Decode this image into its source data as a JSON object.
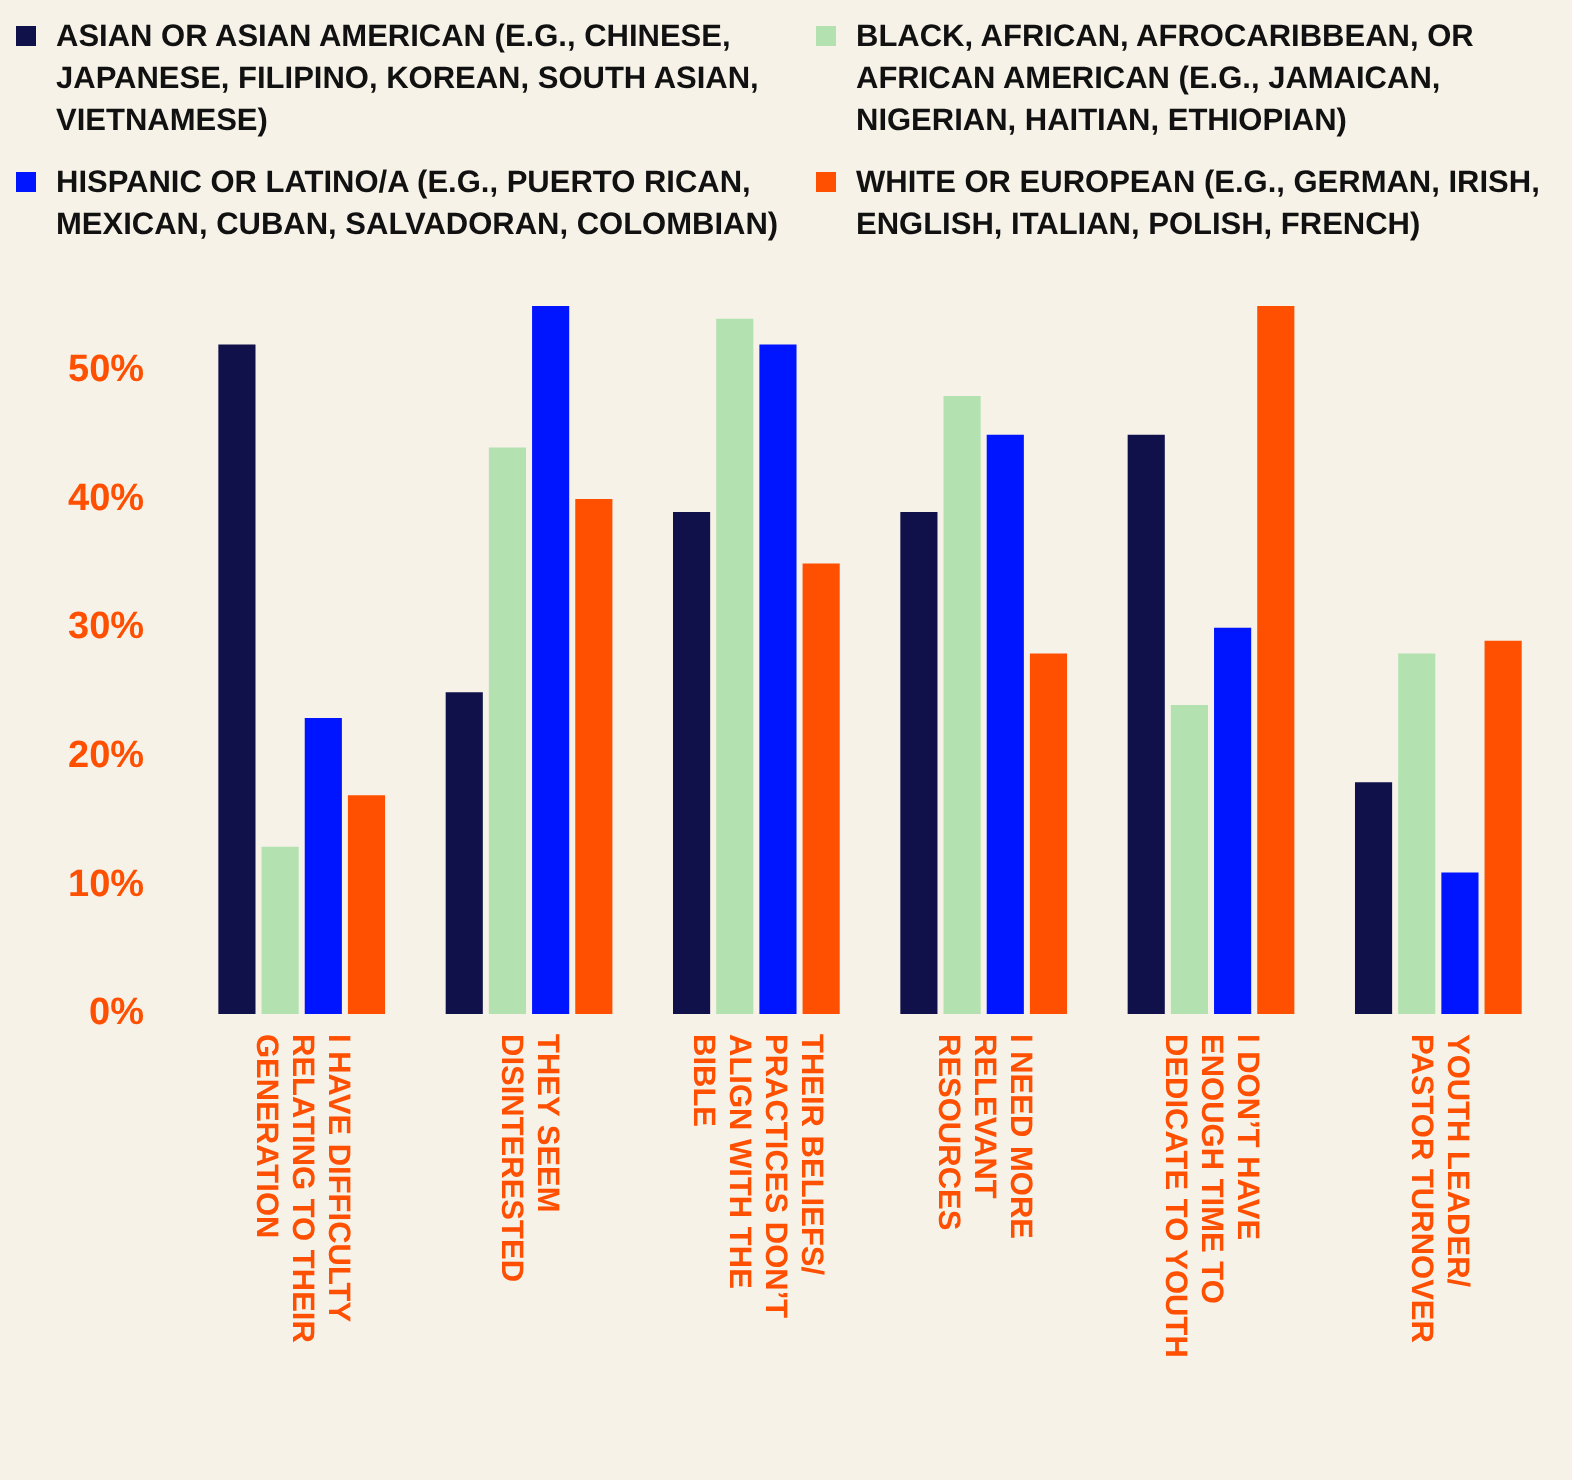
{
  "chart_data": {
    "type": "bar",
    "categories": [
      "I HAVE DIFFICULTY RELATING TO THEIR GENERATION",
      "THEY SEEM DISINTERESTED",
      "THEIR BELIEFS/ PRACTICES DON’T ALIGN WITH THE BIBLE",
      "I NEED MORE RELEVANT RESOURCES",
      "I DON’T HAVE ENOUGH TIME TO DEDICATE TO YOUTH",
      "YOUTH LEADER/ PASTOR TURNOVER"
    ],
    "series": [
      {
        "name": "ASIAN OR ASIAN AMERICAN (E.G., CHINESE, JAPANESE, FILIPINO, KOREAN, SOUTH ASIAN, VIETNAMESE)",
        "color": "#10114a",
        "values": [
          52,
          25,
          39,
          39,
          45,
          18
        ]
      },
      {
        "name": "BLACK, AFRICAN, AFROCARIBBEAN, OR AFRICAN AMERICAN (E.G., JAMAICAN, NIGERIAN, HAITIAN, ETHIOPIAN)",
        "color": "#b3e2b0",
        "values": [
          13,
          44,
          54,
          48,
          24,
          28
        ]
      },
      {
        "name": "HISPANIC OR LATINO/A (E.G., PUERTO RICAN, MEXICAN, CUBAN, SALVADORAN, COLOMBIAN)",
        "color": "#0015ff",
        "values": [
          23,
          55,
          52,
          45,
          30,
          11
        ]
      },
      {
        "name": "WHITE OR EUROPEAN (E.G., GERMAN, IRISH, ENGLISH, ITALIAN, POLISH, FRENCH)",
        "color": "#ff4f00",
        "values": [
          17,
          40,
          35,
          28,
          55,
          29
        ]
      }
    ],
    "yticks": [
      {
        "value": 0,
        "label": "0%"
      },
      {
        "value": 10,
        "label": "10%"
      },
      {
        "value": 20,
        "label": "20%"
      },
      {
        "value": 30,
        "label": "30%"
      },
      {
        "value": 40,
        "label": "40%"
      },
      {
        "value": 50,
        "label": "50%"
      }
    ],
    "ylim": [
      0,
      55
    ],
    "grid": false,
    "legend": "top"
  }
}
